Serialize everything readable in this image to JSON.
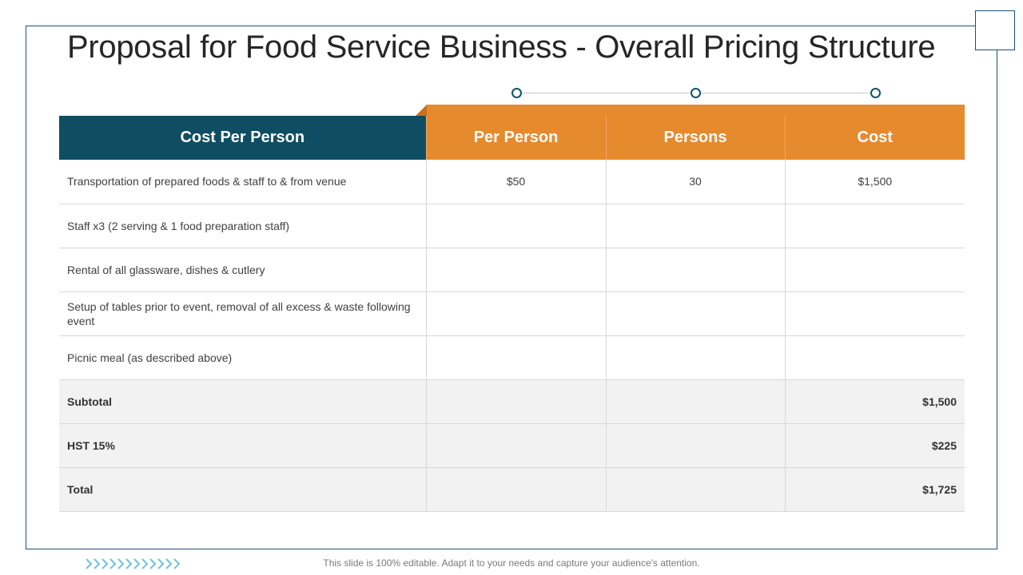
{
  "slide": {
    "title": "Proposal for Food Service Business - Overall Pricing Structure",
    "footer": "This slide is 100% editable. Adapt it to your needs and capture your audience's attention."
  },
  "colors": {
    "header_dark": "#0f4d62",
    "header_orange": "#e68a2e",
    "frame": "#1f4e79",
    "dot": "#0f5468",
    "chevron": "#6ec6d6"
  },
  "table": {
    "headers": [
      "Cost Per Person",
      "Per Person",
      "Persons",
      "Cost"
    ],
    "rows": [
      {
        "label": "Transportation of prepared foods & staff to & from venue",
        "per_person": "$50",
        "persons": "30",
        "cost": "$1,500"
      },
      {
        "label": "Staff x3 (2 serving & 1 food preparation staff)",
        "per_person": "",
        "persons": "",
        "cost": ""
      },
      {
        "label": "Rental of all glassware, dishes & cutlery",
        "per_person": "",
        "persons": "",
        "cost": ""
      },
      {
        "label": "Setup of tables prior to event, removal of all excess & waste following event",
        "per_person": "",
        "persons": "",
        "cost": ""
      },
      {
        "label": "Picnic meal (as described above)",
        "per_person": "",
        "persons": "",
        "cost": ""
      }
    ],
    "summary": [
      {
        "label": "Subtotal",
        "value": "$1,500"
      },
      {
        "label": "HST 15%",
        "value": "$225"
      },
      {
        "label": "Total",
        "value": "$1,725"
      }
    ]
  }
}
